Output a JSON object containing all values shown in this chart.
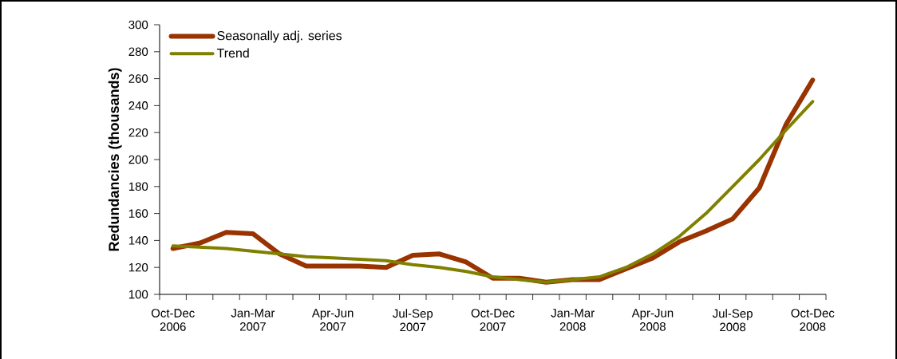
{
  "chart_data": {
    "type": "line",
    "ylabel": "Redundancies (thousands)",
    "categories": [
      "Oct-Dec 2006",
      null,
      null,
      "Jan-Mar 2007",
      null,
      null,
      "Apr-Jun 2007",
      null,
      null,
      "Jul-Sep 2007",
      null,
      null,
      "Oct-Dec 2007",
      null,
      null,
      "Jan-Mar 2008",
      null,
      null,
      "Apr-Jun 2008",
      null,
      null,
      "Jul-Sep 2008",
      null,
      null,
      "Oct-Dec 2008"
    ],
    "series": [
      {
        "name": "Seasonally adj. series",
        "color": "#993300",
        "values": [
          134,
          138,
          146,
          145,
          130,
          121,
          121,
          121,
          120,
          129,
          130,
          124,
          112,
          112,
          109,
          111,
          111,
          119,
          127,
          139,
          147,
          156,
          179,
          226,
          259
        ]
      },
      {
        "name": "Trend",
        "color": "#808000",
        "values": [
          136,
          135,
          134,
          132,
          130,
          128,
          127,
          126,
          125,
          122,
          120,
          117,
          113,
          111,
          109,
          111,
          113,
          120,
          130,
          143,
          160,
          180,
          200,
          222,
          243
        ]
      }
    ],
    "ylim": [
      100,
      300
    ],
    "yticks": [
      100,
      120,
      140,
      160,
      180,
      200,
      220,
      240,
      260,
      280,
      300
    ],
    "grid": false,
    "legend": "top left",
    "marker": "none",
    "line_style": "solid"
  }
}
